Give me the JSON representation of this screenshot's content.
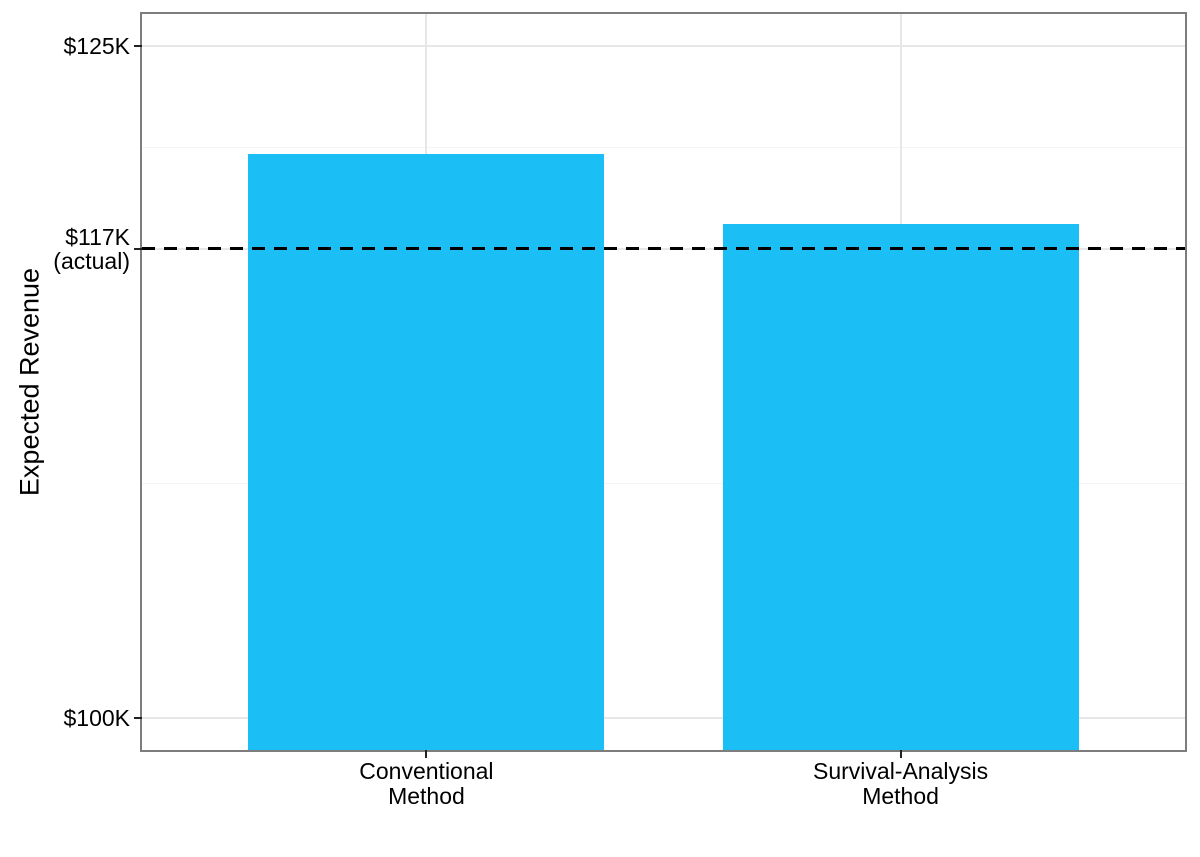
{
  "chart_data": {
    "type": "bar",
    "title": "",
    "xlabel": "",
    "ylabel": "Expected Revenue",
    "categories": [
      {
        "label_lines": [
          "Conventional",
          "Method"
        ],
        "value_k": 121.0
      },
      {
        "label_lines": [
          "Survival-Analysis",
          "Method"
        ],
        "value_k": 118.4
      }
    ],
    "y_ticks": [
      {
        "value_k": 125,
        "label_lines": [
          "$125K"
        ]
      },
      {
        "value_k": 117.46,
        "label_lines": [
          "$117K",
          "(actual)"
        ]
      },
      {
        "value_k": 100,
        "label_lines": [
          "$100K"
        ]
      }
    ],
    "ylim_k": [
      98.8,
      126.2
    ],
    "reference_line": {
      "value_k": 117.46,
      "style": "dashed",
      "color": "#000000"
    },
    "legend": "none",
    "grid": true
  },
  "style": {
    "bar_color": "#1bbef5",
    "grid_major_color": "#e7e7e7",
    "grid_minor_color": "#f4f4f4",
    "panel_border_color": "#7d7d7d",
    "tick_color": "#222222",
    "text_color": "#000000",
    "background": "#ffffff"
  }
}
